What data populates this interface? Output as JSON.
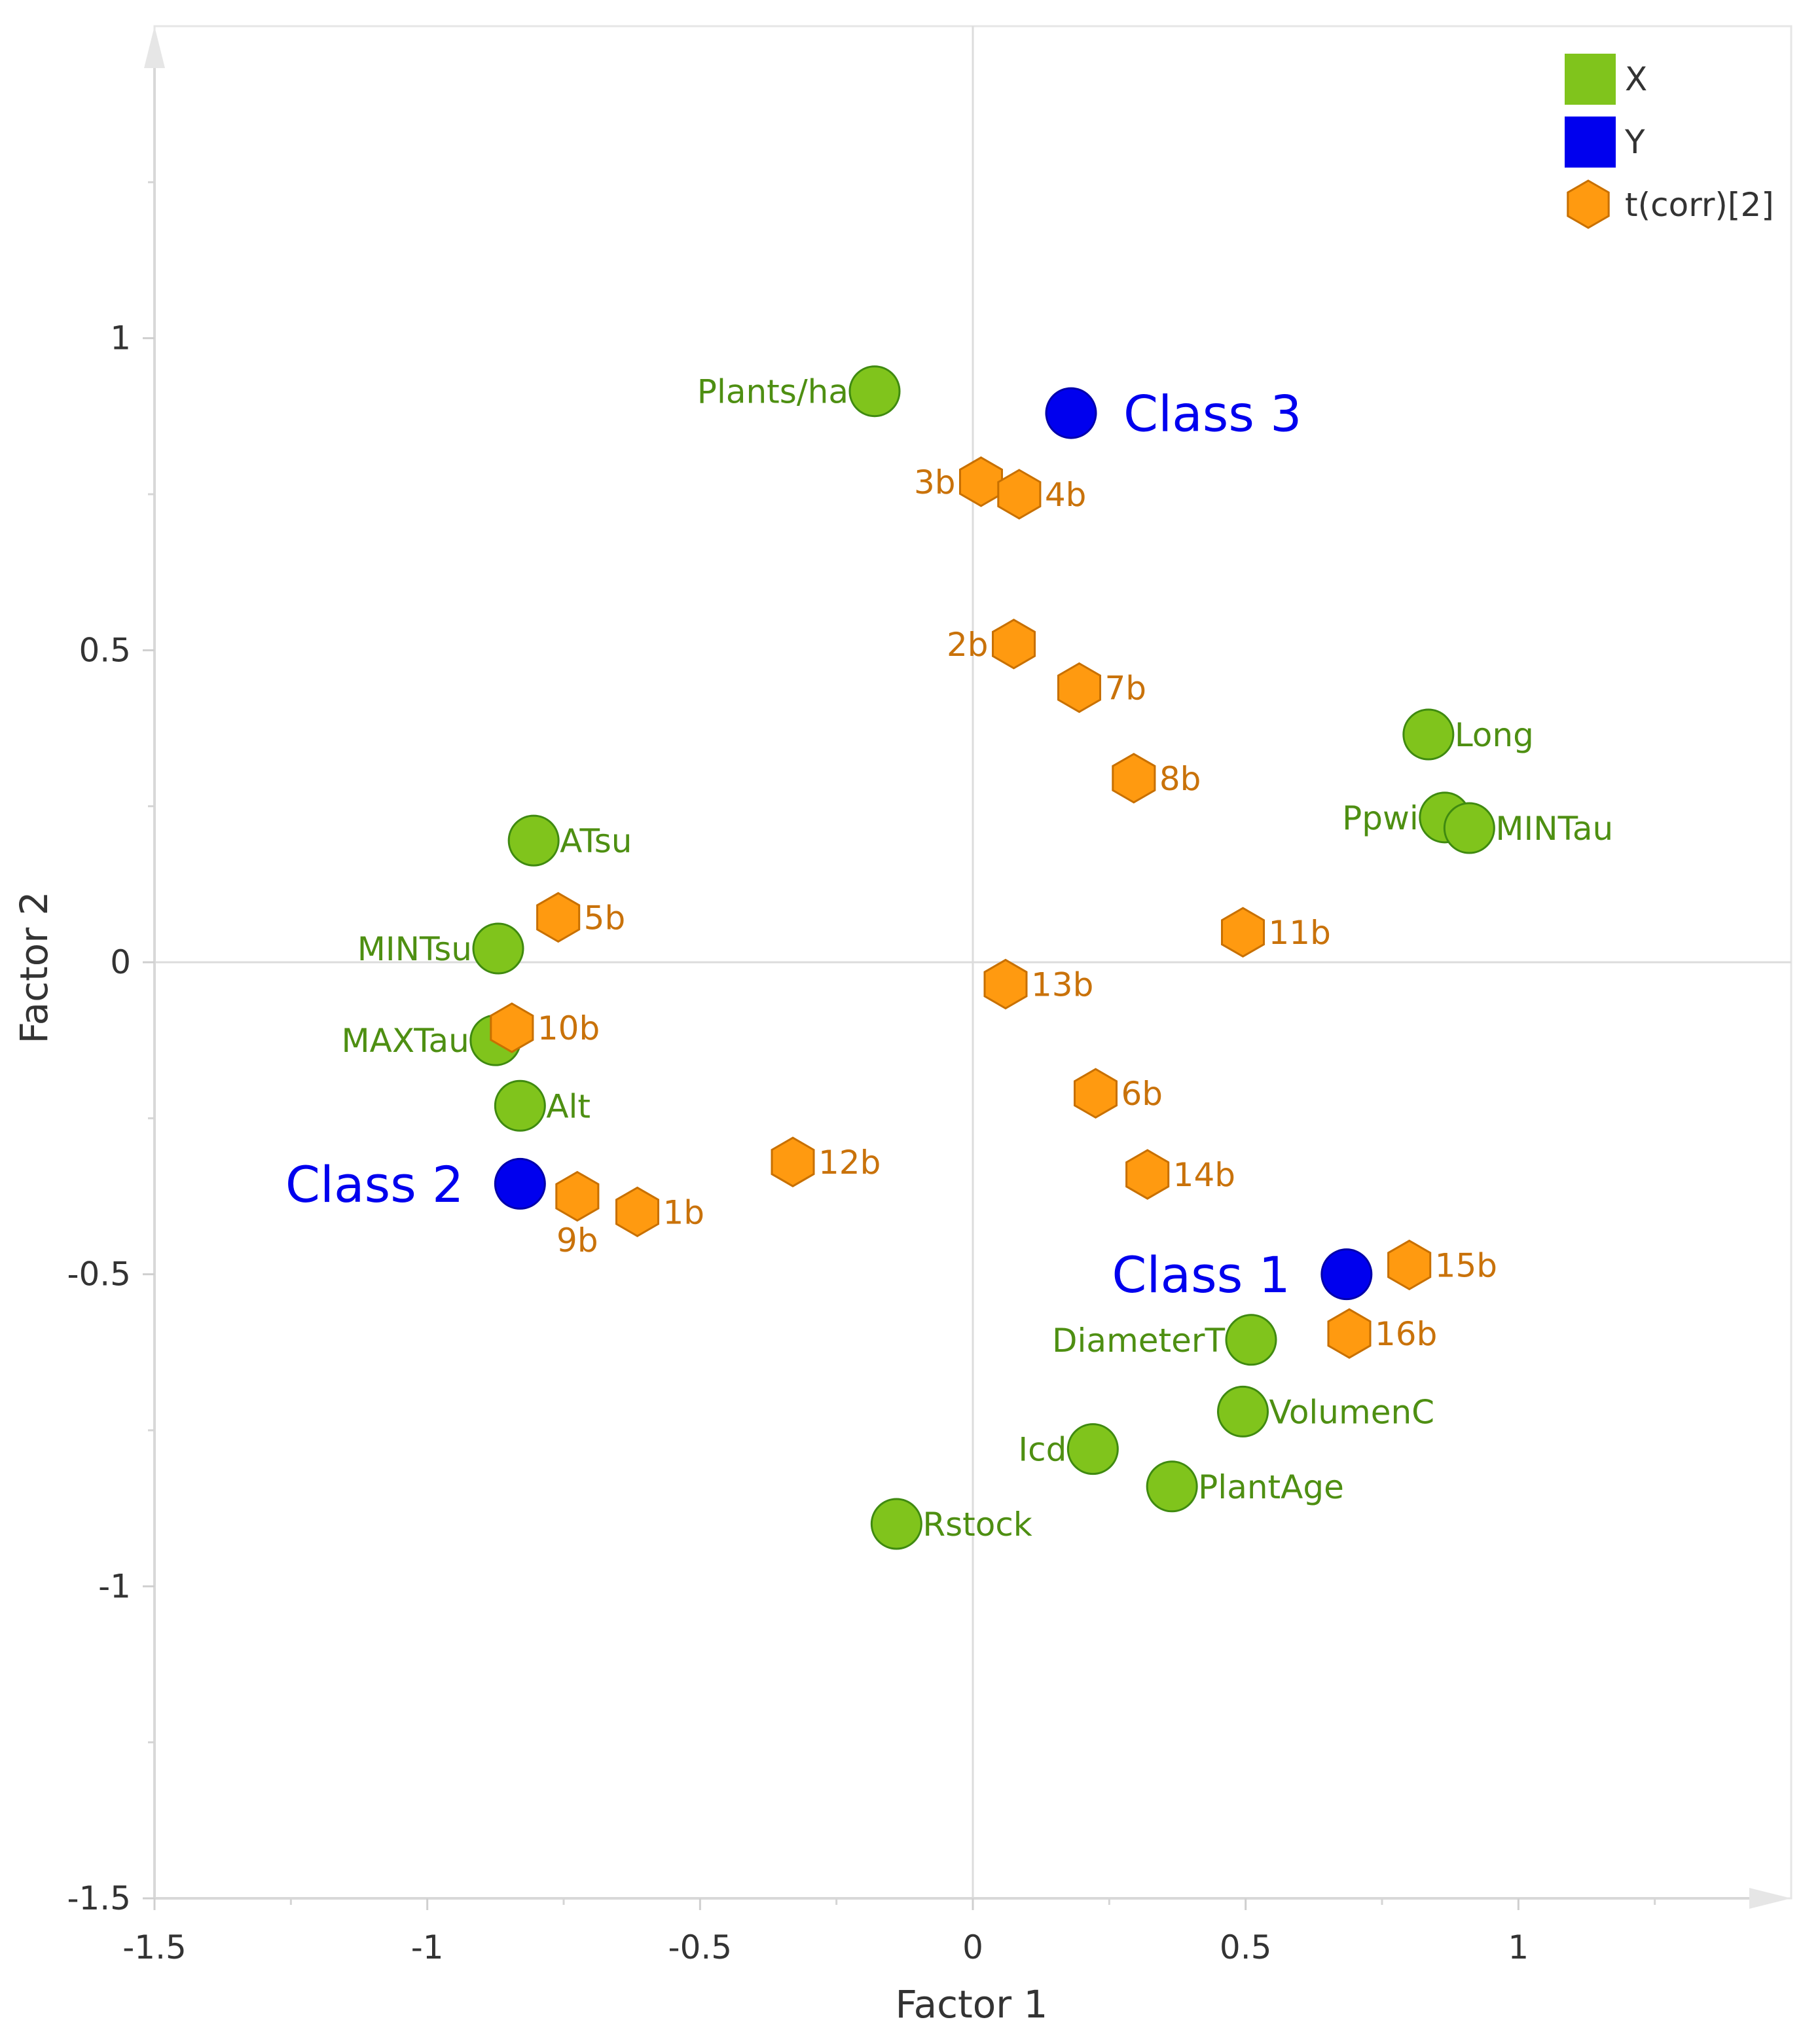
{
  "chart_data": {
    "type": "scatter",
    "title": "",
    "xlabel": "Factor 1",
    "ylabel": "Factor 2",
    "xlim": [
      -1.5,
      1.5
    ],
    "ylim": [
      -1.5,
      1.5
    ],
    "xticks": [
      -1.5,
      -1,
      -0.5,
      0,
      0.5,
      1
    ],
    "yticks": [
      -1.5,
      -1,
      -0.5,
      0,
      0.5,
      1
    ],
    "xtick_labels": [
      "-1.5",
      "-1",
      "-0.5",
      "0",
      "0.5",
      "1"
    ],
    "ytick_labels": [
      "-1.5",
      "-1",
      "-0.5",
      "0",
      "0.5",
      "1"
    ],
    "grid": false,
    "legend_position": "top-right",
    "legend": [
      {
        "label": "X",
        "color": "#80c41c",
        "symbol": "square"
      },
      {
        "label": "Y",
        "color": "#0000ee",
        "symbol": "square"
      },
      {
        "label": "t(corr)[2]",
        "color": "#ff9a10",
        "symbol": "hexagon"
      }
    ],
    "series": [
      {
        "name": "X",
        "marker": "circle",
        "color": "#80c41c",
        "stroke": "#3f8a10",
        "label_color": "#4e8f12",
        "points": [
          {
            "label": "Plants/ha",
            "x": -0.18,
            "y": 0.915,
            "label_side": "left"
          },
          {
            "label": "Long",
            "x": 0.835,
            "y": 0.365,
            "label_side": "right"
          },
          {
            "label": "Ppwi",
            "x": 0.865,
            "y": 0.232,
            "label_side": "left"
          },
          {
            "label": "MINTau",
            "x": 0.91,
            "y": 0.215,
            "label_side": "right"
          },
          {
            "label": "ATsu",
            "x": -0.805,
            "y": 0.195,
            "label_side": "right"
          },
          {
            "label": "MINTsu",
            "x": -0.87,
            "y": 0.022,
            "label_side": "left"
          },
          {
            "label": "MAXTau",
            "x": -0.875,
            "y": -0.125,
            "label_side": "left"
          },
          {
            "label": "Alt",
            "x": -0.83,
            "y": -0.23,
            "label_side": "right"
          },
          {
            "label": "DiameterT",
            "x": 0.51,
            "y": -0.605,
            "label_side": "left"
          },
          {
            "label": "VolumenC",
            "x": 0.495,
            "y": -0.72,
            "label_side": "right"
          },
          {
            "label": "Icd",
            "x": 0.22,
            "y": -0.78,
            "label_side": "left"
          },
          {
            "label": "PlantAge",
            "x": 0.365,
            "y": -0.84,
            "label_side": "right"
          },
          {
            "label": "Rstock",
            "x": -0.14,
            "y": -0.9,
            "label_side": "right"
          }
        ]
      },
      {
        "name": "Y",
        "marker": "circle",
        "color": "#0000ee",
        "stroke": "#0000aa",
        "label_color": "#0000ee",
        "points": [
          {
            "label": "Class 3",
            "x": 0.18,
            "y": 0.88,
            "label_side": "right"
          },
          {
            "label": "Class 2",
            "x": -0.83,
            "y": -0.355,
            "label_side": "left"
          },
          {
            "label": "Class 1",
            "x": 0.685,
            "y": -0.5,
            "label_side": "left"
          }
        ]
      },
      {
        "name": "t(corr)[2]",
        "marker": "hexagon",
        "color": "#ff9a10",
        "stroke": "#c87000",
        "label_color": "#c9720a",
        "points": [
          {
            "label": "3b",
            "x": 0.015,
            "y": 0.77,
            "label_side": "left"
          },
          {
            "label": "4b",
            "x": 0.085,
            "y": 0.75,
            "label_side": "right"
          },
          {
            "label": "2b",
            "x": 0.075,
            "y": 0.51,
            "label_side": "left"
          },
          {
            "label": "7b",
            "x": 0.195,
            "y": 0.44,
            "label_side": "right"
          },
          {
            "label": "8b",
            "x": 0.295,
            "y": 0.295,
            "label_side": "right"
          },
          {
            "label": "5b",
            "x": -0.76,
            "y": 0.072,
            "label_side": "right"
          },
          {
            "label": "11b",
            "x": 0.495,
            "y": 0.048,
            "label_side": "right"
          },
          {
            "label": "13b",
            "x": 0.06,
            "y": -0.035,
            "label_side": "right"
          },
          {
            "label": "10b",
            "x": -0.845,
            "y": -0.105,
            "label_side": "right"
          },
          {
            "label": "6b",
            "x": 0.225,
            "y": -0.21,
            "label_side": "right"
          },
          {
            "label": "14b",
            "x": 0.32,
            "y": -0.34,
            "label_side": "right"
          },
          {
            "label": "12b",
            "x": -0.33,
            "y": -0.32,
            "label_side": "right"
          },
          {
            "label": "9b",
            "x": -0.725,
            "y": -0.375,
            "label_side": "below"
          },
          {
            "label": "1b",
            "x": -0.615,
            "y": -0.4,
            "label_side": "right"
          },
          {
            "label": "15b",
            "x": 0.8,
            "y": -0.485,
            "label_side": "right"
          },
          {
            "label": "16b",
            "x": 0.69,
            "y": -0.595,
            "label_side": "right"
          }
        ]
      }
    ]
  }
}
